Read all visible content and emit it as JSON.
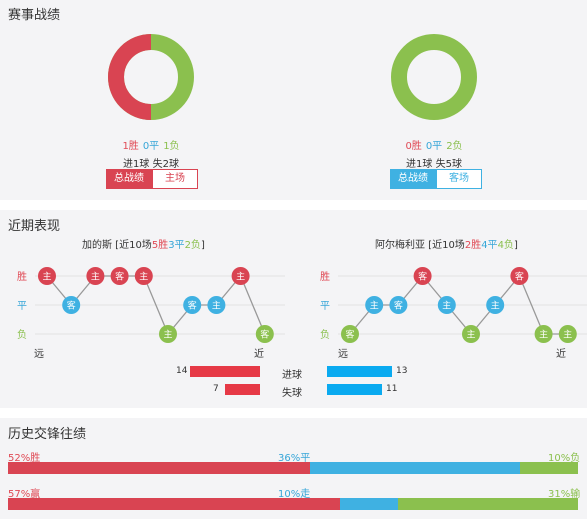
{
  "colors": {
    "win": "#d94452",
    "draw": "#3fb1e2",
    "loss": "#8bc04e"
  },
  "record": {
    "title": "赛事战绩",
    "left": {
      "win": "1胜",
      "draw": "0平",
      "loss": "1负",
      "goals": "进1球 失2球",
      "tabs": [
        "总战绩",
        "主场"
      ],
      "donut_win_fraction": 0.5
    },
    "right": {
      "win": "0胜",
      "draw": "0平",
      "loss": "2负",
      "goals": "进1球 失5球",
      "tabs": [
        "总战绩",
        "客场"
      ],
      "donut_win_fraction": 0
    }
  },
  "recent": {
    "title": "近期表现",
    "axis": {
      "win": "胜",
      "draw": "平",
      "loss": "负",
      "far": "远",
      "near": "近"
    },
    "left_team": {
      "name": "加的斯",
      "prefix": " [近10场",
      "wins": "5胜",
      "draws": "3平",
      "losses": "2负",
      "suffix": "]",
      "results": [
        "W",
        "D",
        "W",
        "W",
        "W",
        "L",
        "D",
        "D",
        "W",
        "L"
      ],
      "venue": [
        "主",
        "客",
        "主",
        "客",
        "主",
        "主",
        "客",
        "主",
        "主",
        "客"
      ]
    },
    "right_team": {
      "name": "阿尔梅利亚",
      "prefix": " [近10场",
      "wins": "2胜",
      "draws": "4平",
      "losses": "4负",
      "suffix": "]",
      "results": [
        "L",
        "D",
        "D",
        "W",
        "D",
        "L",
        "D",
        "W",
        "L",
        "L"
      ],
      "venue": [
        "客",
        "主",
        "客",
        "客",
        "主",
        "主",
        "主",
        "客",
        "主",
        "主"
      ]
    },
    "goals_label": "进球",
    "conceded_label": "失球",
    "left_goals": "14",
    "left_conceded": "7",
    "right_goals": "13",
    "right_conceded": "11",
    "left_goals_value": 14,
    "left_conceded_value": 7,
    "right_goals_value": 13,
    "right_conceded_value": 11
  },
  "history": {
    "title": "历史交锋往绩",
    "row1": {
      "left": "52%胜",
      "mid": "36%平",
      "right": "10%负",
      "values": [
        52,
        36,
        10
      ]
    },
    "row2": {
      "left": "57%赢",
      "mid": "10%走",
      "right": "31%输",
      "values": [
        57,
        10,
        31
      ]
    }
  }
}
